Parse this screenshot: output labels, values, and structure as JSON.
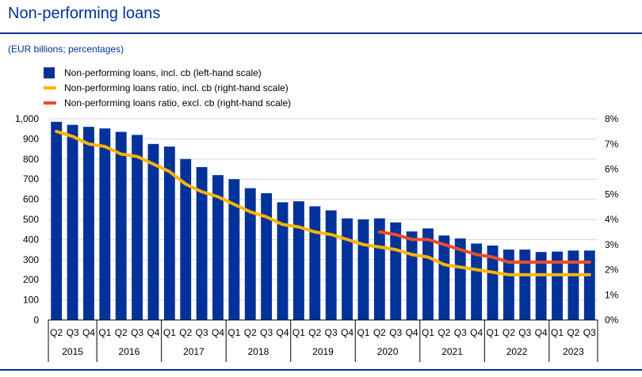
{
  "header": {
    "title": "Non-performing loans",
    "subtitle": "(EUR billions; percentages)"
  },
  "colors": {
    "bars": "#003299",
    "ratio_incl": "#FFB400",
    "ratio_excl": "#EB4C29",
    "grid": "#d9d9d9",
    "rule": "#003299"
  },
  "chart_data": {
    "type": "bar",
    "title": "Non-performing loans",
    "subtitle": "(EUR billions; percentages)",
    "categories": [
      "Q2",
      "Q3",
      "Q4",
      "Q1",
      "Q2",
      "Q3",
      "Q4",
      "Q1",
      "Q2",
      "Q3",
      "Q4",
      "Q1",
      "Q2",
      "Q3",
      "Q4",
      "Q1",
      "Q2",
      "Q3",
      "Q4",
      "Q1",
      "Q2",
      "Q3",
      "Q4",
      "Q1",
      "Q2",
      "Q3",
      "Q4",
      "Q1",
      "Q2",
      "Q3",
      "Q4",
      "Q1",
      "Q2",
      "Q3"
    ],
    "years": [
      {
        "label": "2015",
        "count": 3
      },
      {
        "label": "2016",
        "count": 4
      },
      {
        "label": "2017",
        "count": 4
      },
      {
        "label": "2018",
        "count": 4
      },
      {
        "label": "2019",
        "count": 4
      },
      {
        "label": "2020",
        "count": 4
      },
      {
        "label": "2021",
        "count": 4
      },
      {
        "label": "2022",
        "count": 4
      },
      {
        "label": "2023",
        "count": 3
      }
    ],
    "series": [
      {
        "name": "Non-performing loans, incl. cb (left-hand scale)",
        "type": "bar",
        "axis": "left",
        "values": [
          985,
          970,
          960,
          952,
          935,
          920,
          875,
          862,
          800,
          760,
          720,
          700,
          655,
          630,
          585,
          590,
          565,
          545,
          505,
          500,
          505,
          485,
          440,
          455,
          420,
          405,
          380,
          370,
          350,
          350,
          338,
          340,
          345,
          345
        ]
      },
      {
        "name": "Non-performing loans ratio, incl. cb (right-hand scale)",
        "type": "line",
        "axis": "right",
        "values": [
          7.5,
          7.3,
          7.0,
          6.9,
          6.6,
          6.5,
          6.2,
          5.9,
          5.4,
          5.1,
          4.9,
          4.6,
          4.3,
          4.1,
          3.8,
          3.7,
          3.5,
          3.4,
          3.2,
          3.0,
          2.9,
          2.8,
          2.6,
          2.5,
          2.2,
          2.1,
          2.0,
          1.9,
          1.8,
          1.8,
          1.8,
          1.8,
          1.8,
          1.8
        ]
      },
      {
        "name": "Non-performing loans ratio, excl. cb (right-hand scale)",
        "type": "line",
        "axis": "right",
        "values": [
          null,
          null,
          null,
          null,
          null,
          null,
          null,
          null,
          null,
          null,
          null,
          null,
          null,
          null,
          null,
          null,
          null,
          null,
          null,
          null,
          3.5,
          3.4,
          3.2,
          3.2,
          3.0,
          2.8,
          2.6,
          2.5,
          2.3,
          2.3,
          2.3,
          2.3,
          2.3,
          2.3
        ]
      }
    ],
    "y_left": {
      "min": 0,
      "max": 1000,
      "ticks": [
        "0",
        "100",
        "200",
        "300",
        "400",
        "500",
        "600",
        "700",
        "800",
        "900",
        "1,000"
      ]
    },
    "y_right": {
      "min": 0,
      "max": 8,
      "ticks": [
        "0%",
        "1%",
        "2%",
        "3%",
        "4%",
        "5%",
        "6%",
        "7%",
        "8%"
      ]
    },
    "grid": true,
    "legend_position": "top-left"
  }
}
